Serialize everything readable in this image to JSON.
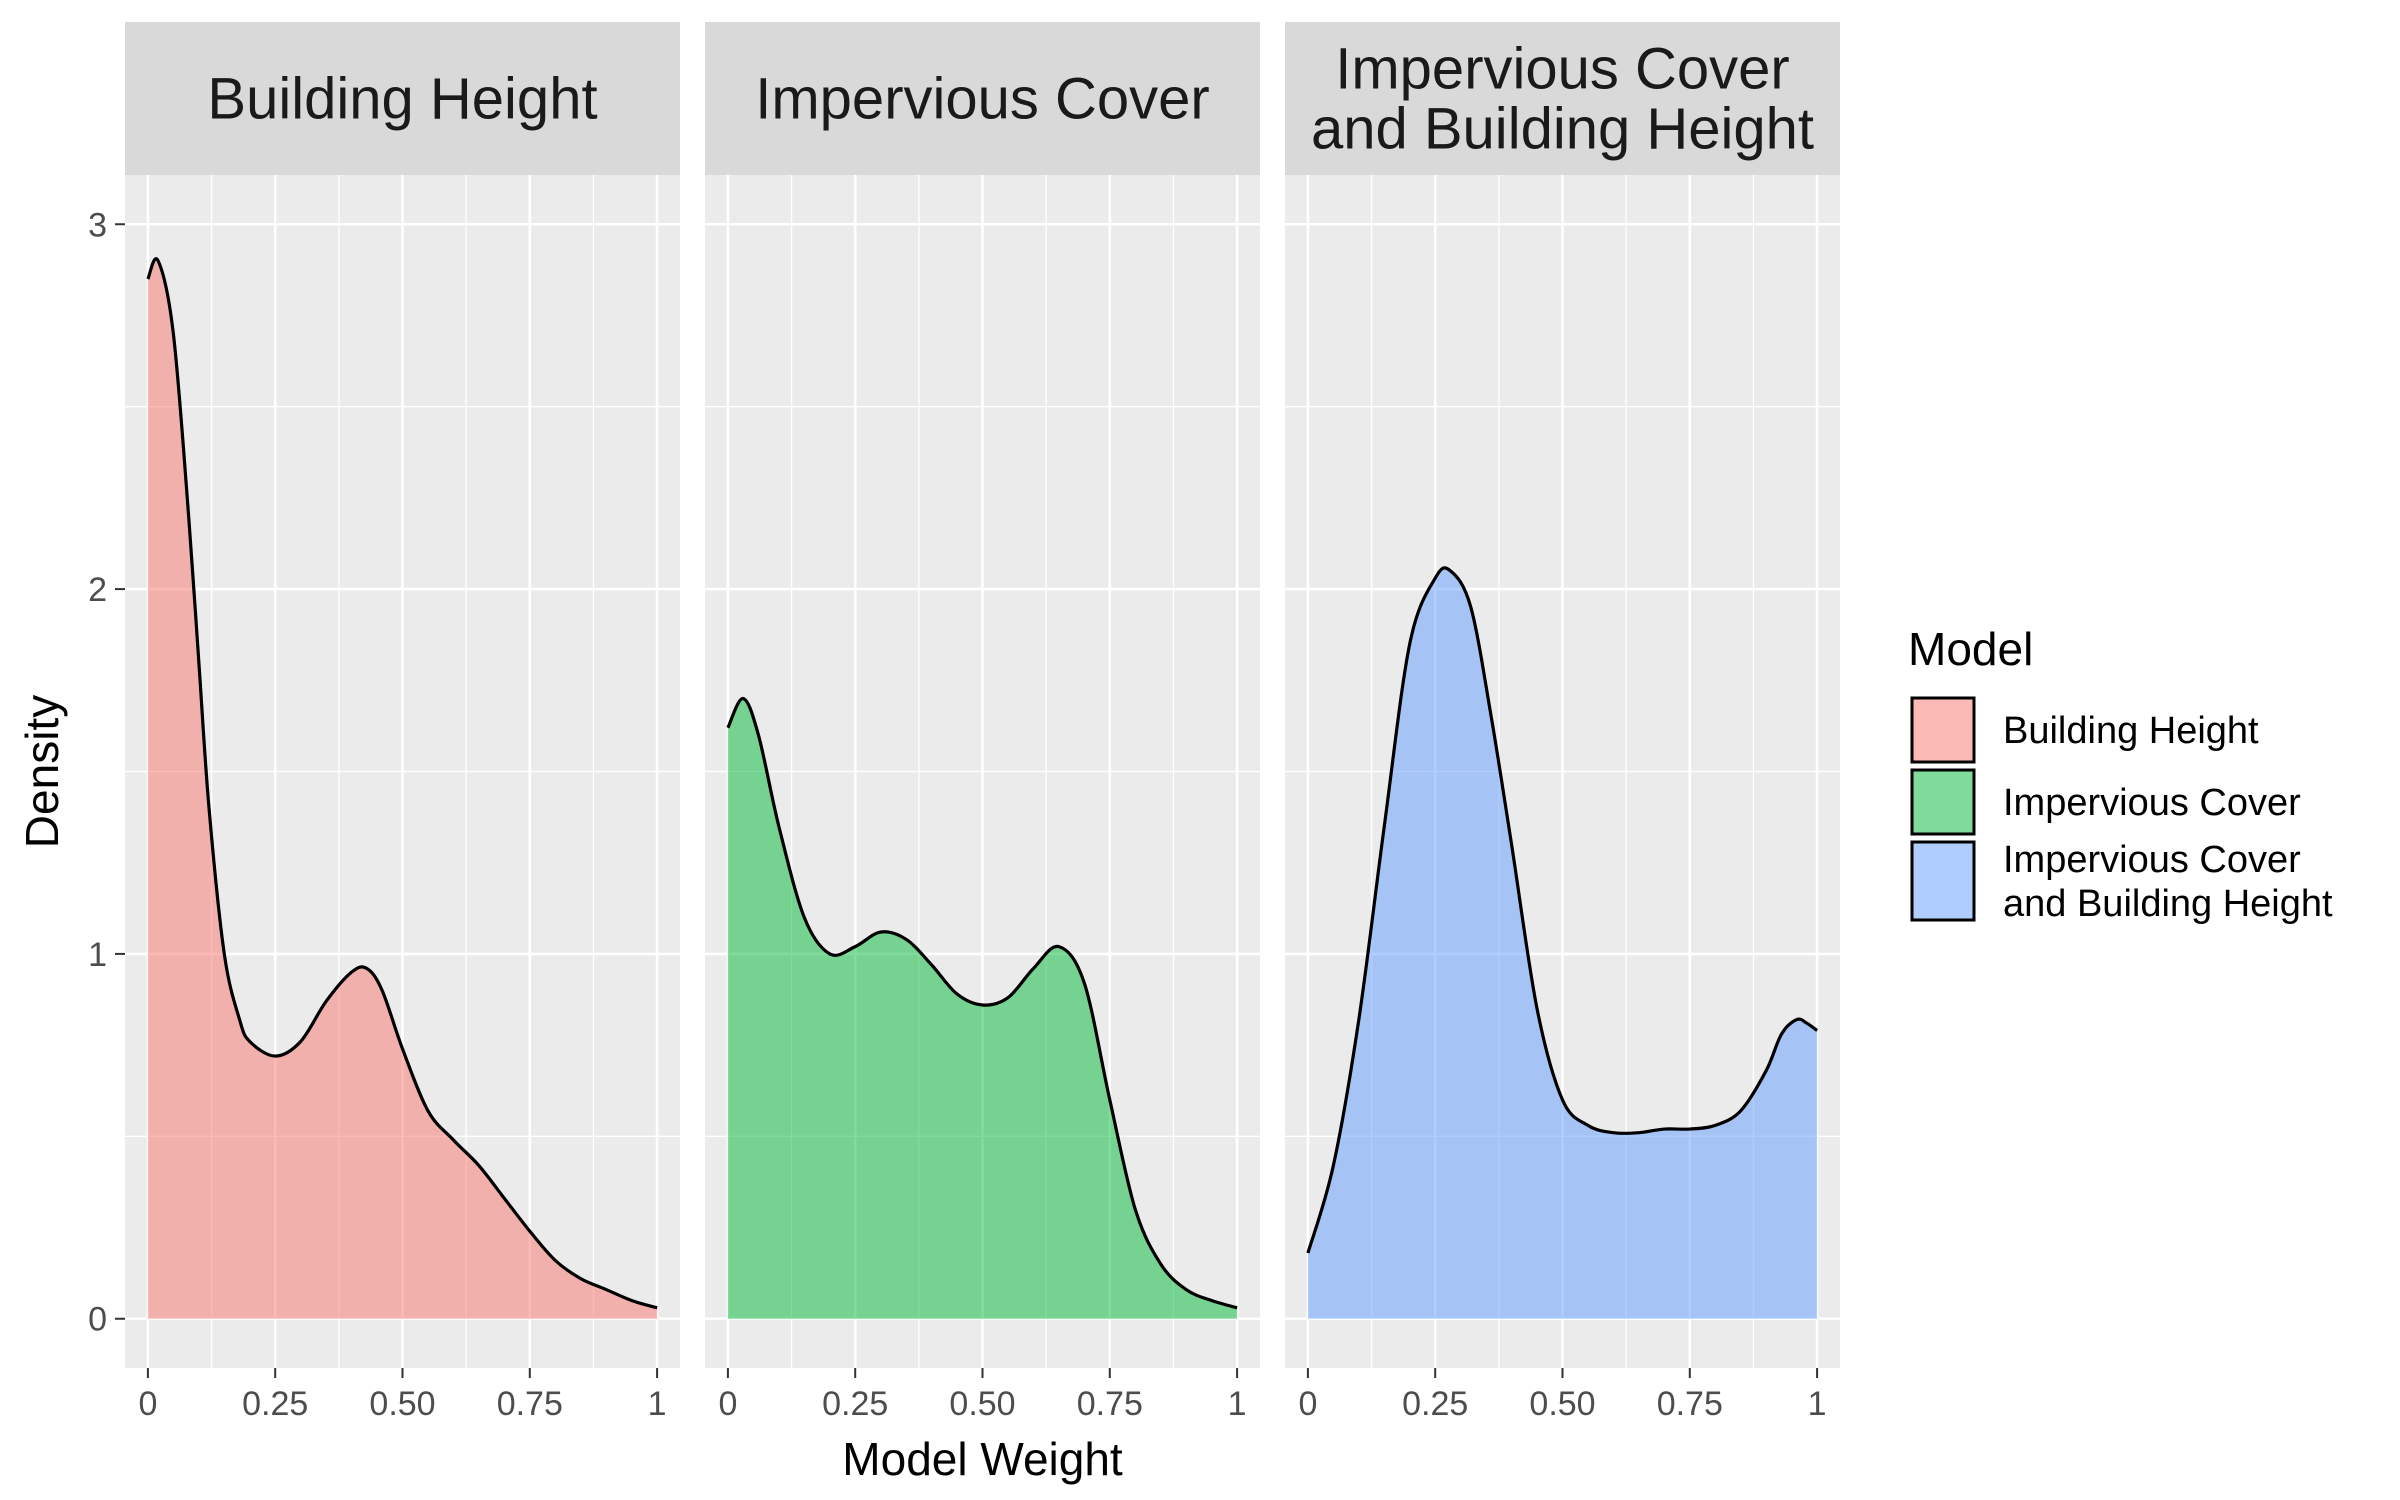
{
  "chart_data": {
    "type": "area",
    "xlabel": "Model Weight",
    "ylabel": "Density",
    "xlim": [
      0,
      1
    ],
    "ylim": [
      0,
      3
    ],
    "x_ticks": [
      0,
      0.25,
      0.5,
      0.75,
      1
    ],
    "x_tick_labels": [
      "0",
      "0.25",
      "0.50",
      "0.75",
      "1"
    ],
    "y_ticks": [
      0,
      1,
      2,
      3
    ],
    "y_tick_labels": [
      "0",
      "1",
      "2",
      "3"
    ],
    "grid": true,
    "legend": {
      "title": "Model",
      "placement": "right",
      "entries": [
        {
          "lines": [
            "Building Height"
          ],
          "color": "#F8766D"
        },
        {
          "lines": [
            "Impervious Cover"
          ],
          "color": "#00BA38"
        },
        {
          "lines": [
            "Impervious Cover",
            "and Building Height"
          ],
          "color": "#619CFF"
        }
      ]
    },
    "panels": [
      {
        "strip": [
          "Building Height"
        ],
        "name": "Building Height",
        "color": "#F8766D",
        "x": [
          0,
          0.02,
          0.05,
          0.08,
          0.1,
          0.12,
          0.15,
          0.18,
          0.2,
          0.25,
          0.3,
          0.35,
          0.4,
          0.43,
          0.46,
          0.5,
          0.55,
          0.6,
          0.65,
          0.7,
          0.75,
          0.8,
          0.85,
          0.9,
          0.95,
          1
        ],
        "y": [
          2.85,
          2.9,
          2.7,
          2.2,
          1.8,
          1.4,
          1.0,
          0.82,
          0.76,
          0.72,
          0.76,
          0.87,
          0.95,
          0.96,
          0.9,
          0.74,
          0.57,
          0.49,
          0.42,
          0.33,
          0.24,
          0.16,
          0.11,
          0.08,
          0.05,
          0.03
        ]
      },
      {
        "strip": [
          "Impervious Cover"
        ],
        "name": "Impervious Cover",
        "color": "#00BA38",
        "x": [
          0,
          0.03,
          0.06,
          0.1,
          0.15,
          0.2,
          0.25,
          0.3,
          0.35,
          0.4,
          0.45,
          0.5,
          0.55,
          0.6,
          0.65,
          0.7,
          0.75,
          0.8,
          0.85,
          0.9,
          0.95,
          1
        ],
        "y": [
          1.62,
          1.7,
          1.6,
          1.35,
          1.1,
          1.0,
          1.02,
          1.06,
          1.04,
          0.97,
          0.89,
          0.86,
          0.88,
          0.96,
          1.02,
          0.92,
          0.6,
          0.3,
          0.15,
          0.08,
          0.05,
          0.03
        ]
      },
      {
        "strip": [
          "Impervious Cover",
          "and Building Height"
        ],
        "name": "Impervious Cover and Building Height",
        "color": "#619CFF",
        "x": [
          0,
          0.05,
          0.1,
          0.15,
          0.2,
          0.25,
          0.28,
          0.32,
          0.36,
          0.4,
          0.45,
          0.5,
          0.55,
          0.6,
          0.65,
          0.7,
          0.75,
          0.8,
          0.85,
          0.9,
          0.93,
          0.96,
          0.98,
          1
        ],
        "y": [
          0.18,
          0.42,
          0.82,
          1.35,
          1.85,
          2.03,
          2.05,
          1.95,
          1.65,
          1.3,
          0.85,
          0.6,
          0.53,
          0.51,
          0.51,
          0.52,
          0.52,
          0.53,
          0.57,
          0.68,
          0.78,
          0.82,
          0.81,
          0.79
        ]
      }
    ]
  }
}
